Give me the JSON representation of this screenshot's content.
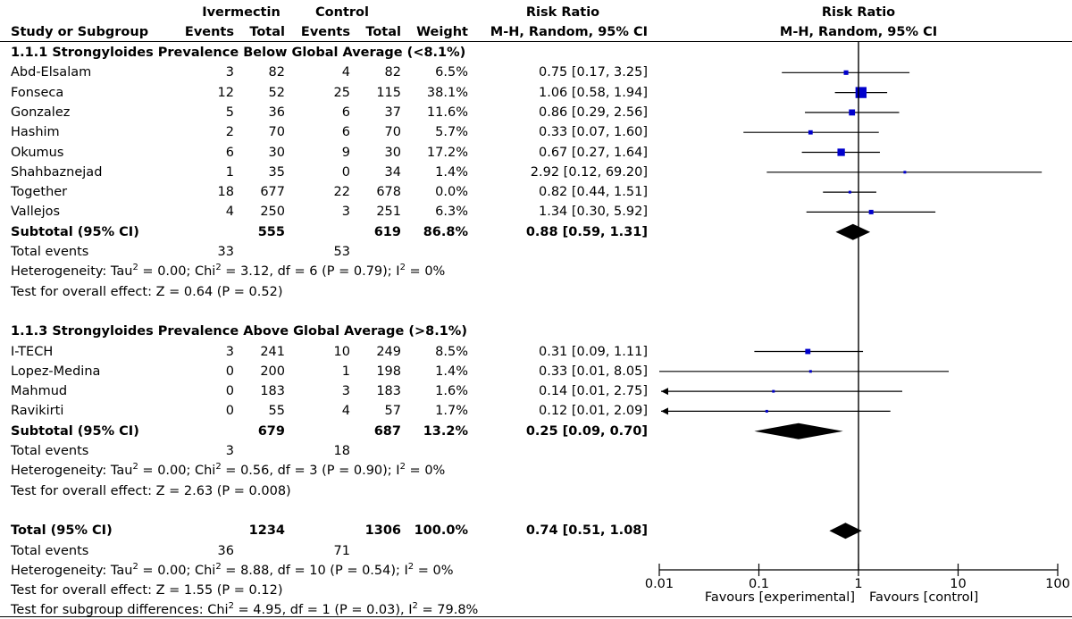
{
  "header": {
    "col_study": "Study or Subgroup",
    "group_ivermectin": "Ivermectin",
    "group_control": "Control",
    "col_events": "Events",
    "col_total": "Total",
    "col_weight": "Weight",
    "col_rr_title": "Risk Ratio",
    "col_rr_method": "M-H, Random, 95% CI",
    "plot_rr_title": "Risk Ratio",
    "plot_rr_method": "M-H, Random, 95% CI"
  },
  "subgroups": [
    {
      "title": "1.1.1 Strongyloides Prevalence Below Global Average (<8.1%)",
      "studies": [
        {
          "name": "Abd-Elsalam",
          "iv_events": "3",
          "iv_total": "82",
          "c_events": "4",
          "c_total": "82",
          "weight": "6.5%",
          "ci_text": "0.75 [0.17, 3.25]",
          "rr": 0.75,
          "lo": 0.17,
          "hi": 3.25,
          "w": 6.5
        },
        {
          "name": "Fonseca",
          "iv_events": "12",
          "iv_total": "52",
          "c_events": "25",
          "c_total": "115",
          "weight": "38.1%",
          "ci_text": "1.06 [0.58, 1.94]",
          "rr": 1.06,
          "lo": 0.58,
          "hi": 1.94,
          "w": 38.1
        },
        {
          "name": "Gonzalez",
          "iv_events": "5",
          "iv_total": "36",
          "c_events": "6",
          "c_total": "37",
          "weight": "11.6%",
          "ci_text": "0.86 [0.29, 2.56]",
          "rr": 0.86,
          "lo": 0.29,
          "hi": 2.56,
          "w": 11.6
        },
        {
          "name": "Hashim",
          "iv_events": "2",
          "iv_total": "70",
          "c_events": "6",
          "c_total": "70",
          "weight": "5.7%",
          "ci_text": "0.33 [0.07, 1.60]",
          "rr": 0.33,
          "lo": 0.07,
          "hi": 1.6,
          "w": 5.7
        },
        {
          "name": "Okumus",
          "iv_events": "6",
          "iv_total": "30",
          "c_events": "9",
          "c_total": "30",
          "weight": "17.2%",
          "ci_text": "0.67 [0.27, 1.64]",
          "rr": 0.67,
          "lo": 0.27,
          "hi": 1.64,
          "w": 17.2
        },
        {
          "name": "Shahbaznejad",
          "iv_events": "1",
          "iv_total": "35",
          "c_events": "0",
          "c_total": "34",
          "weight": "1.4%",
          "ci_text": "2.92 [0.12, 69.20]",
          "rr": 2.92,
          "lo": 0.12,
          "hi": 69.2,
          "w": 1.4
        },
        {
          "name": "Together",
          "iv_events": "18",
          "iv_total": "677",
          "c_events": "22",
          "c_total": "678",
          "weight": "0.0%",
          "ci_text": "0.82 [0.44, 1.51]",
          "rr": 0.82,
          "lo": 0.44,
          "hi": 1.51,
          "w": 0.0
        },
        {
          "name": "Vallejos",
          "iv_events": "4",
          "iv_total": "250",
          "c_events": "3",
          "c_total": "251",
          "weight": "6.3%",
          "ci_text": "1.34 [0.30, 5.92]",
          "rr": 1.34,
          "lo": 0.3,
          "hi": 5.92,
          "w": 6.3
        }
      ],
      "subtotal": {
        "label": "Subtotal (95% CI)",
        "iv_total": "555",
        "c_total": "619",
        "weight": "86.8%",
        "ci_text": "0.88 [0.59, 1.31]",
        "rr": 0.88,
        "lo": 0.59,
        "hi": 1.31
      },
      "total_events": {
        "label": "Total events",
        "iv": "33",
        "c": "53"
      },
      "heterogeneity": {
        "prefix": "Heterogeneity: Tau",
        "sup1": "2",
        "mid": " = 0.00; Chi",
        "sup2": "2",
        "mid2": " = 3.12, df = 6 (P = 0.79); I",
        "sup3": "2",
        "suffix": " = 0%"
      },
      "overall": "Test for overall effect: Z = 0.64 (P = 0.52)"
    },
    {
      "title": "1.1.3 Strongyloides Prevalence Above Global Average (>8.1%)",
      "studies": [
        {
          "name": "I-TECH",
          "iv_events": "3",
          "iv_total": "241",
          "c_events": "10",
          "c_total": "249",
          "weight": "8.5%",
          "ci_text": "0.31 [0.09, 1.11]",
          "rr": 0.31,
          "lo": 0.09,
          "hi": 1.11,
          "w": 8.5
        },
        {
          "name": "Lopez-Medina",
          "iv_events": "0",
          "iv_total": "200",
          "c_events": "1",
          "c_total": "198",
          "weight": "1.4%",
          "ci_text": "0.33 [0.01, 8.05]",
          "rr": 0.33,
          "lo": 0.01,
          "hi": 8.05,
          "w": 1.4
        },
        {
          "name": "Mahmud",
          "iv_events": "0",
          "iv_total": "183",
          "c_events": "3",
          "c_total": "183",
          "weight": "1.6%",
          "ci_text": "0.14 [0.01, 2.75]",
          "rr": 0.14,
          "lo": 0.01,
          "hi": 2.75,
          "w": 1.6,
          "arrow_left": true
        },
        {
          "name": "Ravikirti",
          "iv_events": "0",
          "iv_total": "55",
          "c_events": "4",
          "c_total": "57",
          "weight": "1.7%",
          "ci_text": "0.12 [0.01, 2.09]",
          "rr": 0.12,
          "lo": 0.01,
          "hi": 2.09,
          "w": 1.7,
          "arrow_left": true
        }
      ],
      "subtotal": {
        "label": "Subtotal (95% CI)",
        "iv_total": "679",
        "c_total": "687",
        "weight": "13.2%",
        "ci_text": "0.25 [0.09, 0.70]",
        "rr": 0.25,
        "lo": 0.09,
        "hi": 0.7
      },
      "total_events": {
        "label": "Total events",
        "iv": "3",
        "c": "18"
      },
      "heterogeneity": {
        "prefix": "Heterogeneity: Tau",
        "sup1": "2",
        "mid": " = 0.00; Chi",
        "sup2": "2",
        "mid2": " = 0.56, df = 3 (P = 0.90); I",
        "sup3": "2",
        "suffix": " = 0%"
      },
      "overall": "Test for overall effect: Z = 2.63 (P = 0.008)"
    }
  ],
  "total": {
    "label": "Total (95% CI)",
    "iv_total": "1234",
    "c_total": "1306",
    "weight": "100.0%",
    "ci_text": "0.74 [0.51, 1.08]",
    "rr": 0.74,
    "lo": 0.51,
    "hi": 1.08
  },
  "total_events": {
    "label": "Total events",
    "iv": "36",
    "c": "71"
  },
  "total_heterogeneity": {
    "prefix": "Heterogeneity: Tau",
    "sup1": "2",
    "mid": " = 0.00; Chi",
    "sup2": "2",
    "mid2": " = 8.88, df = 10 (P = 0.54); I",
    "sup3": "2",
    "suffix": " = 0%"
  },
  "total_overall": "Test for overall effect: Z = 1.55 (P = 0.12)",
  "subgroup_diff": {
    "prefix": "Test for subgroup differences: Chi",
    "sup1": "2",
    "mid": " = 4.95, df = 1 (P = 0.03), I",
    "sup2": "2",
    "suffix": " = 79.8%"
  },
  "axis": {
    "ticks": [
      {
        "value": 0.01,
        "label": "0.01"
      },
      {
        "value": 0.1,
        "label": "0.1"
      },
      {
        "value": 1,
        "label": "1"
      },
      {
        "value": 10,
        "label": "10"
      },
      {
        "value": 100,
        "label": "100"
      }
    ],
    "favours_left": "Favours [experimental]",
    "favours_right": "Favours [control]"
  },
  "chart_data": {
    "type": "scatter",
    "title": "",
    "xscale": "log",
    "xlim": [
      0.01,
      100
    ],
    "reference_line": 1,
    "series": [
      {
        "name": "1.1.1 Strongyloides Prevalence Below Global Average (<8.1%)",
        "points": [
          {
            "label": "Abd-Elsalam",
            "rr": 0.75,
            "lo": 0.17,
            "hi": 3.25
          },
          {
            "label": "Fonseca",
            "rr": 1.06,
            "lo": 0.58,
            "hi": 1.94
          },
          {
            "label": "Gonzalez",
            "rr": 0.86,
            "lo": 0.29,
            "hi": 2.56
          },
          {
            "label": "Hashim",
            "rr": 0.33,
            "lo": 0.07,
            "hi": 1.6
          },
          {
            "label": "Okumus",
            "rr": 0.67,
            "lo": 0.27,
            "hi": 1.64
          },
          {
            "label": "Shahbaznejad",
            "rr": 2.92,
            "lo": 0.12,
            "hi": 69.2
          },
          {
            "label": "Together",
            "rr": 0.82,
            "lo": 0.44,
            "hi": 1.51
          },
          {
            "label": "Vallejos",
            "rr": 1.34,
            "lo": 0.3,
            "hi": 5.92
          }
        ]
      },
      {
        "name": "1.1.3 Strongyloides Prevalence Above Global Average (>8.1%)",
        "points": [
          {
            "label": "I-TECH",
            "rr": 0.31,
            "lo": 0.09,
            "hi": 1.11
          },
          {
            "label": "Lopez-Medina",
            "rr": 0.33,
            "lo": 0.01,
            "hi": 8.05
          },
          {
            "label": "Mahmud",
            "rr": 0.14,
            "lo": 0.01,
            "hi": 2.75
          },
          {
            "label": "Ravikirti",
            "rr": 0.12,
            "lo": 0.01,
            "hi": 2.09
          }
        ]
      }
    ],
    "pooled": [
      {
        "label": "Subtotal (95% CI)",
        "group": "1.1.1",
        "rr": 0.88,
        "lo": 0.59,
        "hi": 1.31
      },
      {
        "label": "Subtotal (95% CI)",
        "group": "1.1.3",
        "rr": 0.25,
        "lo": 0.09,
        "hi": 0.7
      },
      {
        "label": "Total (95% CI)",
        "rr": 0.74,
        "lo": 0.51,
        "hi": 1.08
      }
    ],
    "marker_color": "#0000cc",
    "diamond_color": "#000000"
  }
}
